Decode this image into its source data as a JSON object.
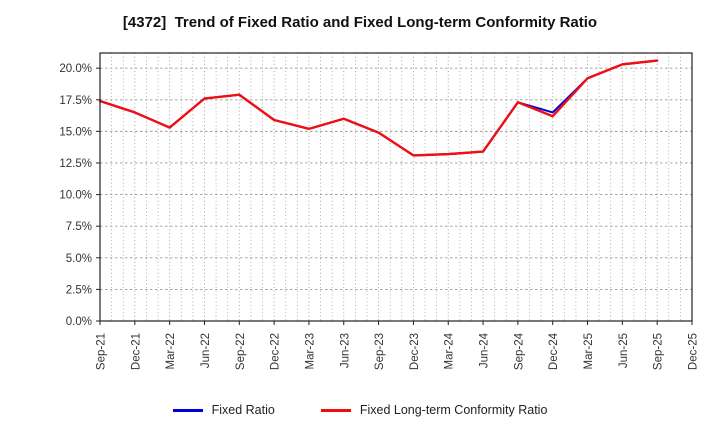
{
  "title": "[4372]  Trend of Fixed Ratio and Fixed Long-term Conformity Ratio",
  "chart_data": {
    "type": "line",
    "title": "[4372]  Trend of Fixed Ratio and Fixed Long-term Conformity Ratio",
    "categories": [
      "Sep-21",
      "Dec-21",
      "Mar-22",
      "Jun-22",
      "Sep-22",
      "Dec-22",
      "Mar-23",
      "Jun-23",
      "Sep-23",
      "Dec-23",
      "Mar-24",
      "Jun-24",
      "Sep-24",
      "Dec-24",
      "Mar-25",
      "Jun-25",
      "Sep-25",
      "Dec-25"
    ],
    "series": [
      {
        "name": "Fixed Ratio",
        "color": "#0000dd",
        "values": [
          17.4,
          16.5,
          15.3,
          17.6,
          17.9,
          15.9,
          15.2,
          16.0,
          14.9,
          13.1,
          13.2,
          13.4,
          17.3,
          16.5,
          19.2,
          20.3,
          20.6,
          null
        ]
      },
      {
        "name": "Fixed Long-term Conformity Ratio",
        "color": "#ee0e14",
        "values": [
          17.4,
          16.5,
          15.3,
          17.6,
          17.9,
          15.9,
          15.2,
          16.0,
          14.9,
          13.1,
          13.2,
          13.4,
          17.3,
          16.2,
          19.2,
          20.3,
          20.6,
          null
        ]
      }
    ],
    "ylim": [
      0,
      21.2
    ],
    "y_ticks": [
      0,
      2.5,
      5,
      7.5,
      10,
      12.5,
      15,
      17.5,
      20
    ],
    "y_tick_suffix": "%",
    "x_minor_divisions": 3,
    "grid": true,
    "legend_position": "bottom",
    "axis_color": "#222222",
    "grid_color": "#9a9a9a"
  }
}
